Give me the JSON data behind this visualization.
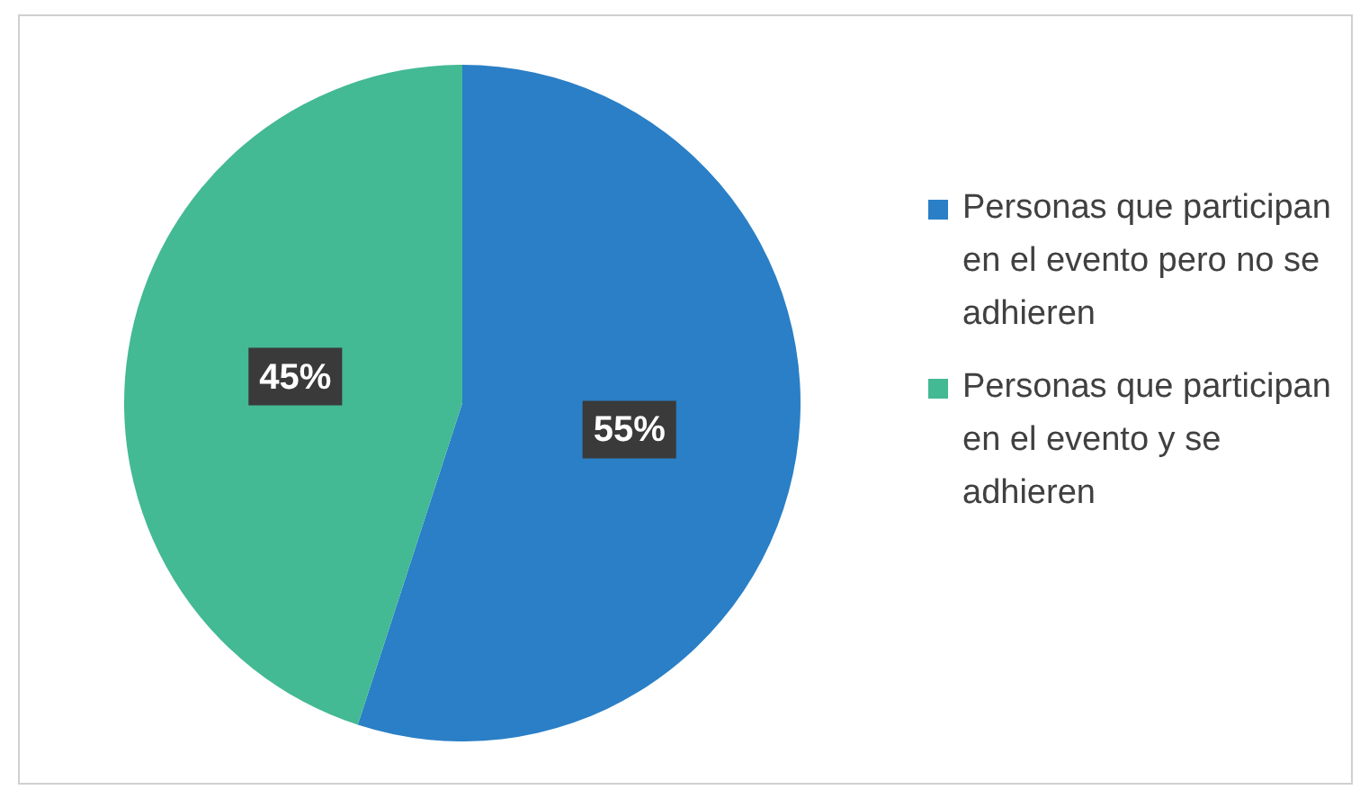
{
  "chart_data": {
    "type": "pie",
    "categories": [
      "Personas que participan en el evento pero no se adhieren",
      "Personas que participan en el evento y se adhieren"
    ],
    "values": [
      55,
      45
    ],
    "colors": [
      "#2a7fc6",
      "#43b994"
    ],
    "value_labels": [
      "55%",
      "45%"
    ],
    "legend": "right"
  }
}
